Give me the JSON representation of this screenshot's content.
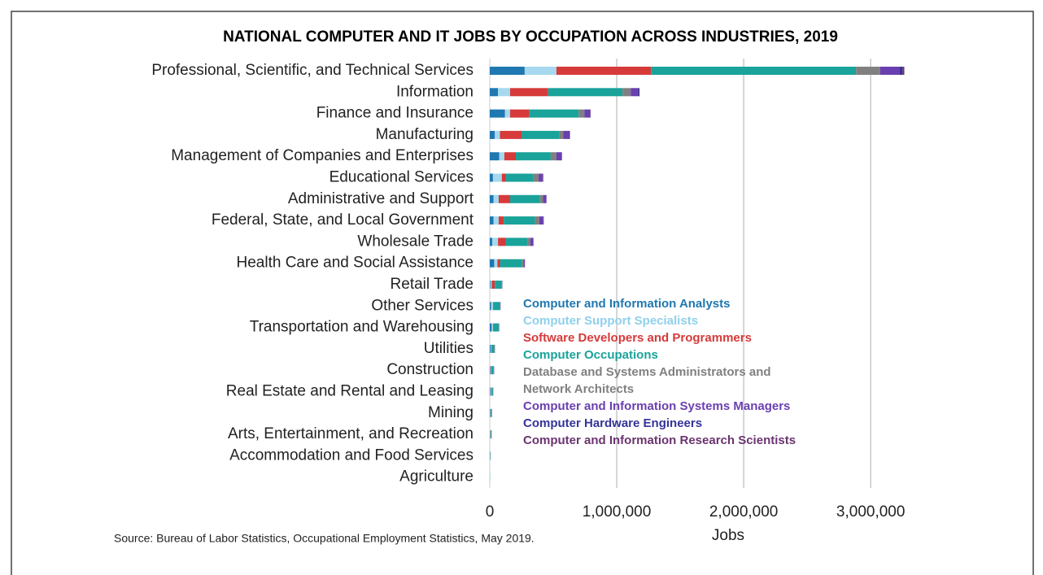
{
  "chart_data": {
    "type": "stacked_barh",
    "title": "NATIONAL COMPUTER AND IT JOBS BY OCCUPATION ACROSS INDUSTRIES, 2019",
    "source": "Source: Bureau of Labor Statistics, Occupational Employment Statistics, May 2019.",
    "x_label": "Jobs",
    "categories": [
      "Professional, Scientific, and Technical Services",
      "Information",
      "Finance and Insurance",
      "Manufacturing",
      "Management of Companies and Enterprises",
      "Educational Services",
      "Administrative and Support",
      "Federal, State, and Local Government",
      "Wholesale Trade",
      "Health Care and Social Assistance",
      "Retail Trade",
      "Other Services",
      "Transportation and Warehousing",
      "Utilities",
      "Construction",
      "Real Estate and Rental and Leasing",
      "Mining",
      "Arts, Entertainment, and Recreation",
      "Accommodation and Food Services",
      "Agriculture"
    ],
    "series": [
      {
        "name": "Computer and Information Analysts",
        "color": "#1f78b0",
        "values": [
          275000,
          65000,
          120000,
          40000,
          75000,
          25000,
          30000,
          30000,
          20000,
          35000,
          5000,
          10000,
          15000,
          8000,
          5000,
          5000,
          3000,
          2000,
          1000,
          0
        ]
      },
      {
        "name": "Computer Support Specialists",
        "color": "#a6d9ef",
        "values": [
          250000,
          95000,
          40000,
          40000,
          40000,
          70000,
          40000,
          40000,
          45000,
          25000,
          10000,
          15000,
          10000,
          5000,
          5000,
          5000,
          3000,
          3000,
          2000,
          1000
        ]
      },
      {
        "name": "Software Developers and Programmers",
        "color": "#d63a3a",
        "values": [
          745000,
          300000,
          150000,
          170000,
          90000,
          30000,
          90000,
          40000,
          60000,
          20000,
          25000,
          5000,
          5000,
          3000,
          3000,
          2000,
          2000,
          2000,
          1000,
          0
        ]
      },
      {
        "name": "Computer Occupations",
        "color": "#19a39a",
        "values": [
          1615000,
          585000,
          390000,
          300000,
          275000,
          220000,
          235000,
          245000,
          175000,
          175000,
          55000,
          50000,
          40000,
          20000,
          18000,
          12000,
          7000,
          7000,
          3000,
          1000
        ]
      },
      {
        "name": "Database and Systems Administrators and Network Architects",
        "color": "#808080",
        "values": [
          190000,
          65000,
          45000,
          30000,
          45000,
          40000,
          25000,
          35000,
          20000,
          10000,
          3000,
          3000,
          3000,
          2000,
          2000,
          2000,
          1000,
          1000,
          500,
          0
        ]
      },
      {
        "name": "Computer and Information Systems Managers",
        "color": "#6a3fb0",
        "values": [
          150000,
          55000,
          45000,
          45000,
          40000,
          30000,
          25000,
          30000,
          20000,
          10000,
          2000,
          2000,
          2000,
          2000,
          2000,
          2000,
          2000,
          1000,
          500,
          0
        ]
      },
      {
        "name": "Computer Hardware Engineers",
        "color": "#34349a",
        "values": [
          25000,
          10000,
          2000,
          5000,
          2000,
          1000,
          1000,
          2000,
          3000,
          1000,
          0,
          0,
          0,
          500,
          0,
          0,
          0,
          0,
          0,
          0
        ]
      },
      {
        "name": "Computer and Information Research Scientists",
        "color": "#6b3470",
        "values": [
          15000,
          5000,
          3000,
          2000,
          2000,
          5000,
          1000,
          3000,
          1000,
          1000,
          0,
          0,
          0,
          500,
          0,
          0,
          0,
          0,
          0,
          0
        ]
      }
    ],
    "xlim": [
      0,
      3300000
    ],
    "xticks": [
      0,
      {
        "value": 1000000,
        "label": "1,000,000"
      },
      {
        "value": 2000000,
        "label": "2,000,000"
      },
      {
        "value": 3000000,
        "label": "3,000,000"
      }
    ],
    "grid": true
  }
}
